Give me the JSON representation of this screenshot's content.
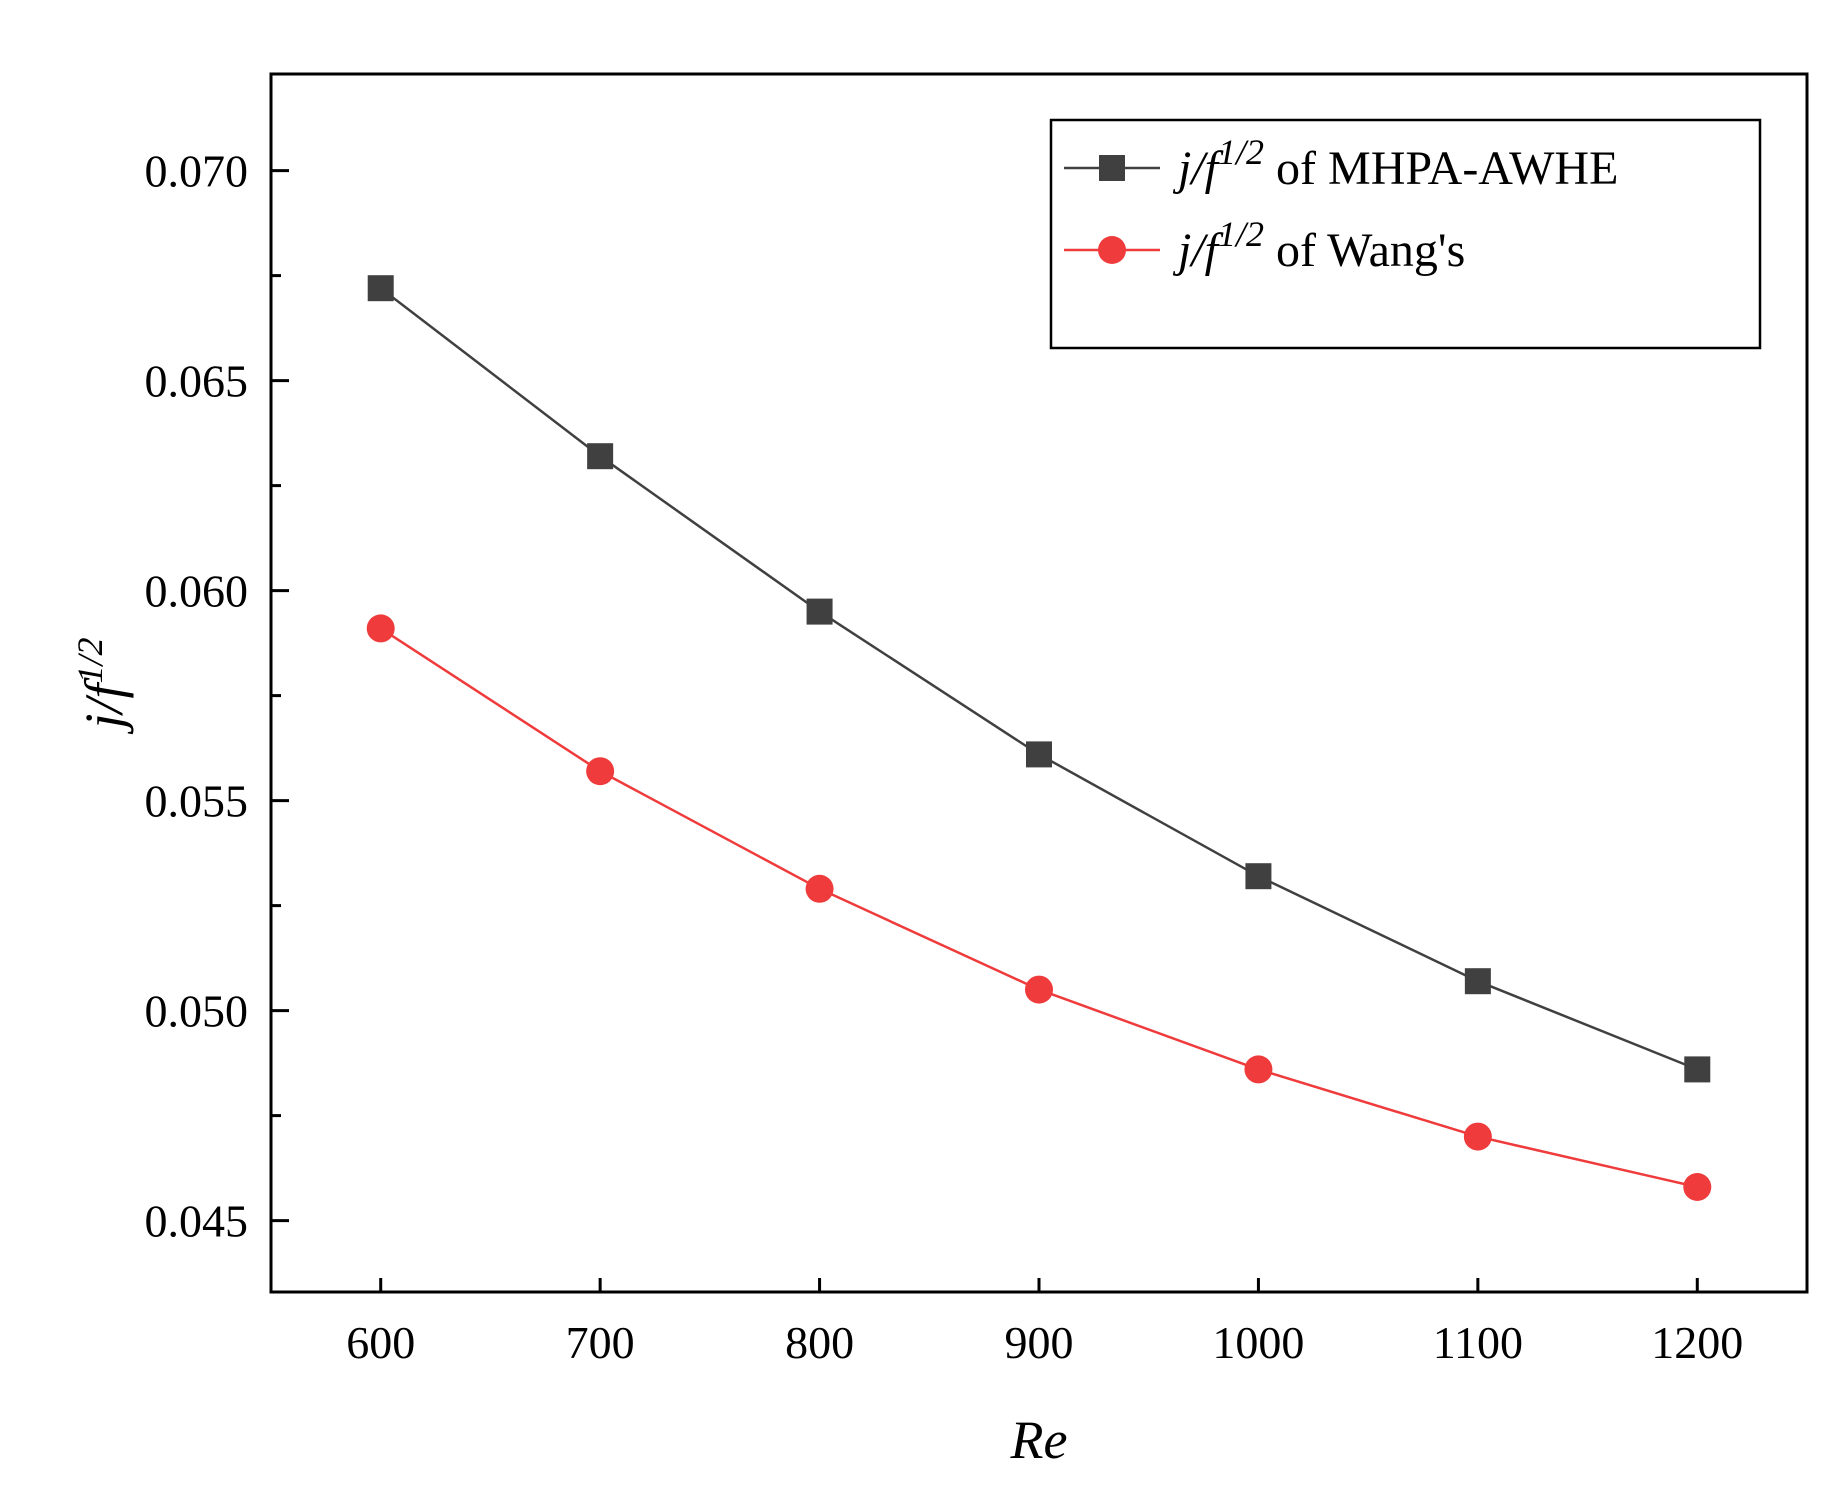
{
  "chart_data": {
    "type": "line",
    "title": "",
    "xlabel": "Re",
    "ylabel": {
      "base": "j/f",
      "sup": "1/2"
    },
    "x": [
      600,
      700,
      800,
      900,
      1000,
      1100,
      1200
    ],
    "xlim": [
      550,
      1250
    ],
    "ylim": [
      0.0433,
      0.0723
    ],
    "x_ticks": [
      600,
      700,
      800,
      900,
      1000,
      1100,
      1200
    ],
    "x_tick_labels": [
      "600",
      "700",
      "800",
      "900",
      "1000",
      "1100",
      "1200"
    ],
    "y_ticks": [
      0.045,
      0.05,
      0.055,
      0.06,
      0.065,
      0.07
    ],
    "y_tick_labels": [
      "0.045",
      "0.050",
      "0.055",
      "0.060",
      "0.065",
      "0.070"
    ],
    "y_minor_ticks": [
      0.0475,
      0.0525,
      0.0575,
      0.0625,
      0.0675
    ],
    "grid": false,
    "legend_position": "top-right",
    "series": [
      {
        "name": "j/f^1/2 of MHPA-AWHE",
        "legend": {
          "math_base": "j/f",
          "math_sup": "1/2",
          "text": "of  MHPA-AWHE"
        },
        "color": "#404040",
        "marker": "square",
        "values": [
          0.0672,
          0.0632,
          0.0595,
          0.0561,
          0.0532,
          0.0507,
          0.0486
        ]
      },
      {
        "name": "j/f^1/2 of Wang's",
        "legend": {
          "math_base": "j/f",
          "math_sup": "1/2",
          "text": "of Wang's"
        },
        "color": "#ef3b3b",
        "marker": "circle",
        "values": [
          0.0591,
          0.0557,
          0.0529,
          0.0505,
          0.0486,
          0.047,
          0.0458
        ]
      }
    ]
  }
}
